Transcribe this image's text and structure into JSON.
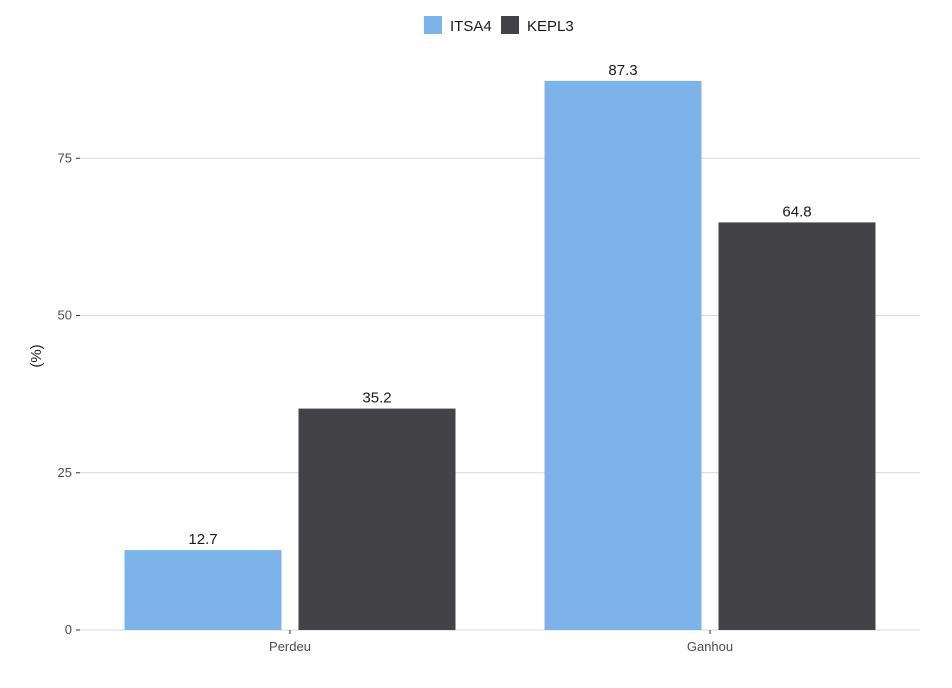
{
  "chart_data": {
    "type": "bar",
    "categories": [
      "Perdeu",
      "Ganhou"
    ],
    "series": [
      {
        "name": "ITSA4",
        "values": [
          12.7,
          87.3
        ],
        "labels": [
          "12.7",
          "87.3"
        ],
        "color": "#7cb4ea"
      },
      {
        "name": "KEPL3",
        "values": [
          35.2,
          64.8
        ],
        "labels": [
          "35.2",
          "64.8"
        ],
        "color": "#434247"
      }
    ],
    "title": "",
    "xlabel": "",
    "ylabel": "(%)",
    "ylim": [
      0,
      90
    ],
    "yticks": [
      0,
      25,
      50,
      75
    ],
    "ytick_labels": [
      "0",
      "25",
      "50",
      "75"
    ],
    "grid": true,
    "legend": "top"
  }
}
